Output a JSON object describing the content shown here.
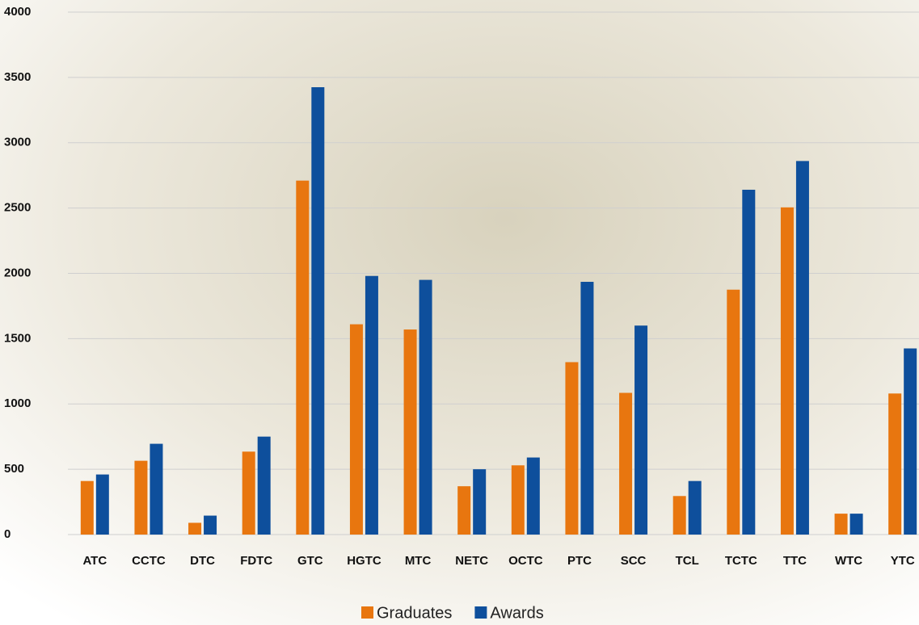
{
  "chart_data": {
    "type": "bar",
    "categories": [
      "ATC",
      "CCTC",
      "DTC",
      "FDTC",
      "GTC",
      "HGTC",
      "MTC",
      "NETC",
      "OCTC",
      "PTC",
      "SCC",
      "TCL",
      "TCTC",
      "TTC",
      "WTC",
      "YTC"
    ],
    "series": [
      {
        "name": "Graduates",
        "color": "#e8760f",
        "values": [
          410,
          565,
          90,
          635,
          2710,
          1610,
          1570,
          370,
          530,
          1320,
          1085,
          295,
          1875,
          2505,
          160,
          1080
        ]
      },
      {
        "name": "Awards",
        "color": "#0e4f9c",
        "values": [
          460,
          695,
          145,
          750,
          3425,
          1980,
          1950,
          500,
          590,
          1935,
          1600,
          410,
          2640,
          2860,
          160,
          1425
        ]
      }
    ],
    "ylim": [
      0,
      4000
    ],
    "yticks": [
      0,
      500,
      1000,
      1500,
      2000,
      2500,
      3000,
      3500,
      4000
    ],
    "grid": true,
    "legend": "bottom"
  }
}
